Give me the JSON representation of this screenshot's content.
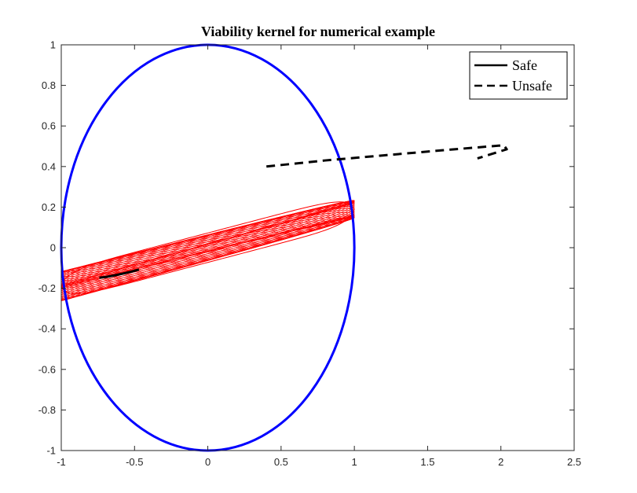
{
  "chart_data": {
    "type": "line",
    "title": "Viability kernel for numerical example",
    "xlabel": "",
    "ylabel": "",
    "xlim": [
      -1,
      2.5
    ],
    "ylim": [
      -1,
      1
    ],
    "x_ticks": [
      -1,
      -0.5,
      0,
      0.5,
      1,
      1.5,
      2,
      2.5
    ],
    "y_ticks": [
      -1,
      -0.8,
      -0.6,
      -0.4,
      -0.2,
      0,
      0.2,
      0.4,
      0.6,
      0.8,
      1
    ],
    "x_tick_labels": [
      "-1",
      "-0.5",
      "0",
      "0.5",
      "1",
      "1.5",
      "2",
      "2.5"
    ],
    "y_tick_labels": [
      "-1",
      "-0.8",
      "-0.6",
      "-0.4",
      "-0.2",
      "0",
      "0.2",
      "0.4",
      "0.6",
      "0.8",
      "1"
    ],
    "grid": false,
    "legend": {
      "position": "top-right"
    },
    "constraint_set": {
      "shape": "ellipse",
      "color": "#0000ff",
      "center": [
        0,
        0
      ],
      "semi_axes": [
        1,
        1
      ]
    },
    "kernel_region": {
      "color": "#ff0000",
      "slope": 0.19,
      "thickness": 0.145,
      "x_range": [
        -1,
        1
      ]
    },
    "series": [
      {
        "name": "Safe",
        "style": "solid",
        "color": "#000000",
        "x": [
          -0.74,
          -0.7,
          -0.64,
          -0.58,
          -0.52,
          -0.47
        ],
        "y": [
          -0.148,
          -0.145,
          -0.137,
          -0.128,
          -0.118,
          -0.108
        ]
      },
      {
        "name": "Unsafe",
        "style": "dashed",
        "color": "#000000",
        "x": [
          0.4,
          0.8,
          1.2,
          1.6,
          2.02,
          2.04,
          1.84
        ],
        "y": [
          0.4,
          0.43,
          0.455,
          0.48,
          0.505,
          0.485,
          0.44
        ]
      }
    ]
  }
}
